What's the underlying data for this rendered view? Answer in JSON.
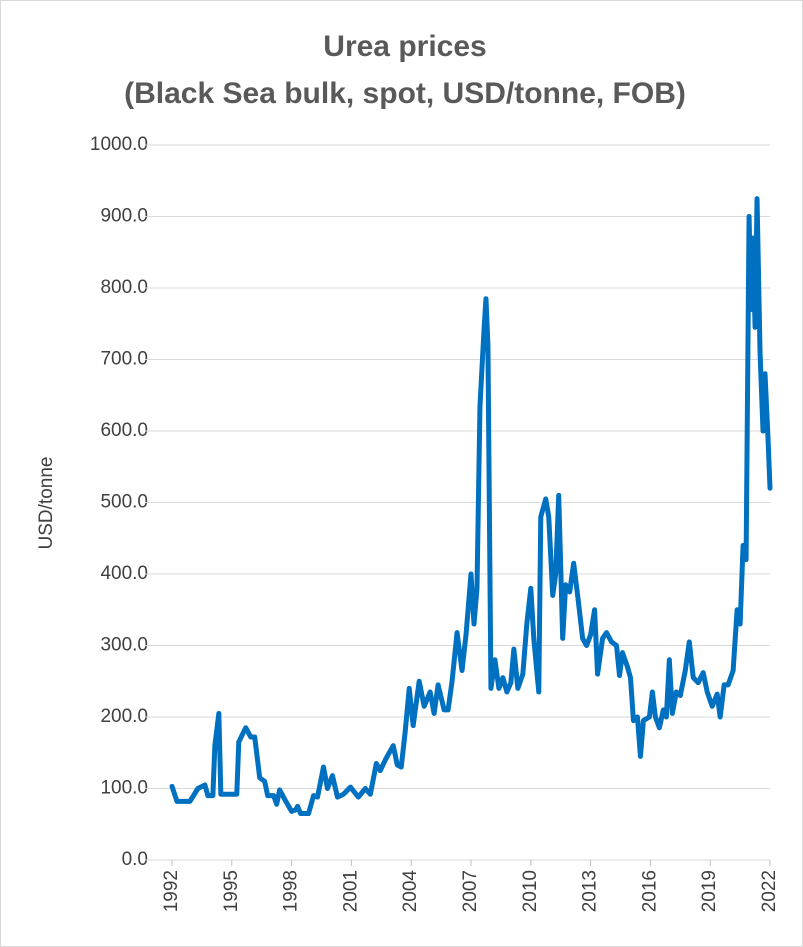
{
  "chart_data": {
    "type": "line",
    "title": "Urea prices",
    "subtitle": "(Black Sea bulk, spot, USD/tonne, FOB)",
    "y_label": "USD/tonne",
    "color": "#0070c0",
    "grid": true,
    "x": [
      1992.0,
      1992.25,
      1992.9,
      1993.3,
      1993.65,
      1993.8,
      1994.05,
      1994.15,
      1994.35,
      1994.45,
      1995.25,
      1995.35,
      1995.7,
      1995.95,
      1996.15,
      1996.4,
      1996.65,
      1996.8,
      1997.1,
      1997.25,
      1997.4,
      1997.65,
      1998.0,
      1998.2,
      1998.3,
      1998.45,
      1998.85,
      1999.1,
      1999.3,
      1999.6,
      1999.8,
      2000.05,
      2000.3,
      2000.6,
      2000.95,
      2001.35,
      2001.7,
      2001.95,
      2002.25,
      2002.45,
      2002.7,
      2003.1,
      2003.3,
      2003.5,
      2003.7,
      2003.9,
      2004.1,
      2004.4,
      2004.65,
      2004.95,
      2005.15,
      2005.35,
      2005.65,
      2005.85,
      2006.05,
      2006.3,
      2006.55,
      2006.75,
      2007.0,
      2007.15,
      2007.3,
      2007.45,
      2007.65,
      2007.75,
      2007.85,
      2008.0,
      2008.2,
      2008.4,
      2008.6,
      2008.8,
      2009.0,
      2009.15,
      2009.35,
      2009.6,
      2009.8,
      2010.0,
      2010.15,
      2010.4,
      2010.5,
      2010.75,
      2010.9,
      2011.1,
      2011.25,
      2011.4,
      2011.6,
      2011.75,
      2011.95,
      2012.15,
      2012.35,
      2012.6,
      2012.8,
      2013.0,
      2013.2,
      2013.35,
      2013.6,
      2013.8,
      2014.05,
      2014.3,
      2014.45,
      2014.6,
      2014.85,
      2015.0,
      2015.15,
      2015.35,
      2015.5,
      2015.65,
      2015.95,
      2016.1,
      2016.25,
      2016.45,
      2016.65,
      2016.8,
      2016.95,
      2017.1,
      2017.3,
      2017.5,
      2017.75,
      2017.95,
      2018.15,
      2018.4,
      2018.65,
      2018.85,
      2019.1,
      2019.35,
      2019.5,
      2019.7,
      2019.9,
      2020.15,
      2020.35,
      2020.5,
      2020.65,
      2020.8,
      2020.95,
      2021.05,
      2021.15,
      2021.25,
      2021.35,
      2021.5,
      2021.65,
      2021.75,
      2021.9,
      2022.0
    ],
    "values": [
      103,
      82,
      82,
      100,
      105,
      90,
      90,
      160,
      205,
      92,
      92,
      165,
      185,
      172,
      172,
      115,
      110,
      90,
      90,
      78,
      98,
      85,
      68,
      70,
      75,
      65,
      65,
      90,
      88,
      130,
      100,
      118,
      88,
      92,
      102,
      88,
      100,
      92,
      135,
      125,
      140,
      160,
      133,
      130,
      180,
      240,
      188,
      250,
      215,
      235,
      205,
      245,
      210,
      210,
      250,
      318,
      265,
      315,
      400,
      330,
      380,
      635,
      740,
      785,
      720,
      240,
      280,
      240,
      255,
      235,
      248,
      295,
      240,
      260,
      330,
      380,
      310,
      235,
      480,
      505,
      480,
      370,
      400,
      510,
      310,
      385,
      375,
      415,
      370,
      310,
      300,
      315,
      350,
      260,
      310,
      318,
      305,
      300,
      258,
      290,
      270,
      255,
      195,
      200,
      145,
      195,
      200,
      235,
      200,
      185,
      210,
      200,
      280,
      205,
      235,
      230,
      265,
      305,
      255,
      248,
      262,
      235,
      215,
      232,
      200,
      245,
      245,
      265,
      350,
      330,
      440,
      420,
      900,
      770,
      870,
      745,
      925,
      710,
      600,
      680,
      590,
      520
    ],
    "xlim": [
      1992,
      2022
    ],
    "xticks": [
      1992,
      1995,
      1998,
      2001,
      2004,
      2007,
      2010,
      2013,
      2016,
      2019,
      2022
    ],
    "ylim": [
      0,
      1000
    ],
    "yticks": [
      {
        "value": 0,
        "label": "0.0"
      },
      {
        "value": 100,
        "label": "100.0"
      },
      {
        "value": 200,
        "label": "200.0"
      },
      {
        "value": 300,
        "label": "300.0"
      },
      {
        "value": 400,
        "label": "400.0"
      },
      {
        "value": 500,
        "label": "500.0"
      },
      {
        "value": 600,
        "label": "600.0"
      },
      {
        "value": 700,
        "label": "700.0"
      },
      {
        "value": 800,
        "label": "800.0"
      },
      {
        "value": 900,
        "label": "900.0"
      },
      {
        "value": 1000,
        "label": "1000.0"
      }
    ]
  }
}
